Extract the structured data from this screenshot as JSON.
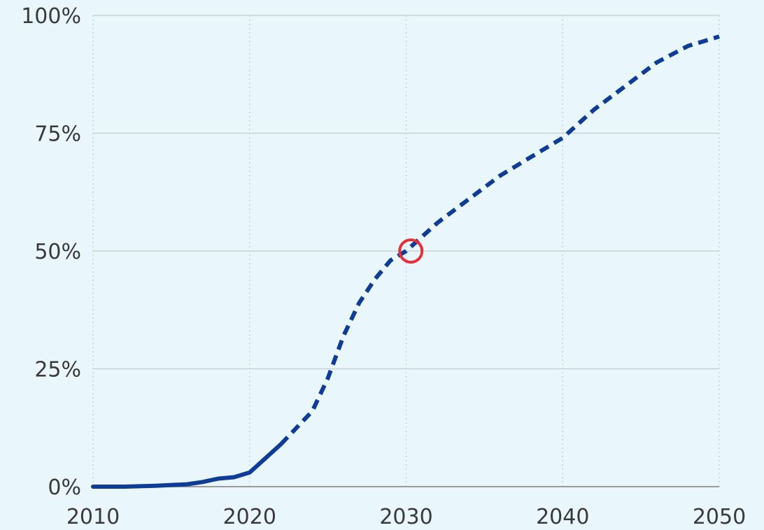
{
  "chart_data": {
    "type": "line",
    "title": "",
    "xlabel": "",
    "ylabel": "",
    "xlim": [
      2010,
      2050
    ],
    "ylim": [
      0,
      100
    ],
    "x_ticks": [
      2010,
      2020,
      2030,
      2040,
      2050
    ],
    "x_tick_labels": [
      "2010",
      "2020",
      "2030",
      "2040",
      "2050"
    ],
    "y_ticks": [
      0,
      25,
      50,
      75,
      100
    ],
    "y_tick_labels": [
      "0%",
      "25%",
      "50%",
      "75%",
      "100%"
    ],
    "grid": {
      "vertical": "dotted",
      "horizontal": "solid"
    },
    "series": [
      {
        "style": "solid",
        "x": [
          2010,
          2012,
          2014,
          2016,
          2017,
          2018,
          2019,
          2020,
          2021,
          2022
        ],
        "y": [
          0,
          0,
          0.2,
          0.5,
          1,
          1.7,
          2,
          3,
          6,
          9
        ]
      },
      {
        "style": "dashed",
        "x": [
          2022,
          2024,
          2025,
          2026,
          2027,
          2028,
          2029,
          2030,
          2031,
          2032,
          2034,
          2036,
          2038,
          2040,
          2042,
          2044,
          2046,
          2048,
          2050
        ],
        "y": [
          9,
          16,
          23,
          32,
          39,
          44,
          48,
          50,
          53,
          56,
          61,
          66,
          70,
          74,
          80,
          85,
          90,
          93.5,
          95.5
        ]
      }
    ],
    "annotations": [
      {
        "type": "circle-marker",
        "x": 2030.3,
        "y": 50,
        "color": "#e8303a"
      }
    ],
    "colors": {
      "line": "#0f3c96",
      "grid": "#c9d3d6",
      "axis": "#9a9a9a",
      "text": "#3a3a3a",
      "background": "#e9f6fb"
    }
  }
}
